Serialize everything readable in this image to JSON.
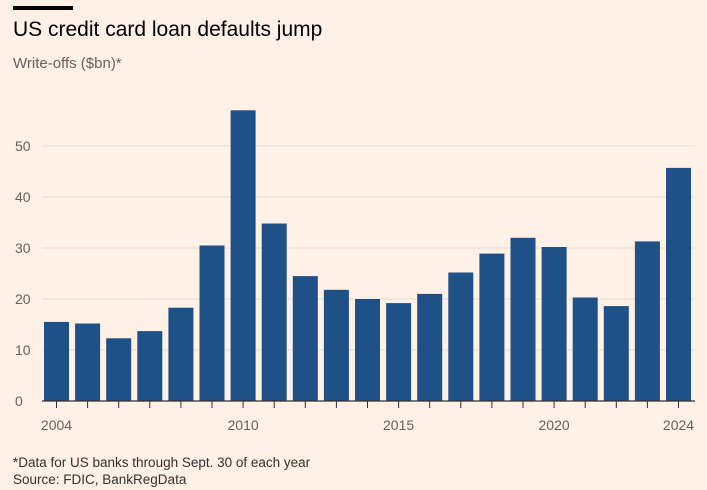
{
  "header": {
    "title": "US credit card loan defaults jump",
    "subtitle": "Write-offs ($bn)*"
  },
  "footer": {
    "note": "*Data for US banks through Sept. 30 of each year",
    "source": "Source: FDIC, BankRegData"
  },
  "colors": {
    "background": "#fff1e5",
    "bar": "#1f5189",
    "grid": "#e6d9ce",
    "axis": "#33302e"
  },
  "chart_data": {
    "type": "bar",
    "title": "US credit card loan defaults jump",
    "subtitle": "Write-offs ($bn)*",
    "xlabel": "",
    "ylabel": "",
    "categories": [
      "2004",
      "2005",
      "2006",
      "2007",
      "2008",
      "2009",
      "2010",
      "2011",
      "2012",
      "2013",
      "2014",
      "2015",
      "2016",
      "2017",
      "2018",
      "2019",
      "2020",
      "2021",
      "2022",
      "2023",
      "2024"
    ],
    "values": [
      15.5,
      15.2,
      12.3,
      13.7,
      18.3,
      30.5,
      57.0,
      34.8,
      24.5,
      21.8,
      20.0,
      19.2,
      21.0,
      25.2,
      28.9,
      32.0,
      30.2,
      20.3,
      18.6,
      31.3,
      45.7
    ],
    "x_tick_labels": [
      "2004",
      "2010",
      "2015",
      "2020",
      "2024"
    ],
    "y_ticks": [
      0,
      10,
      20,
      30,
      40,
      50
    ],
    "ylim": [
      0,
      60
    ],
    "grid": true
  }
}
